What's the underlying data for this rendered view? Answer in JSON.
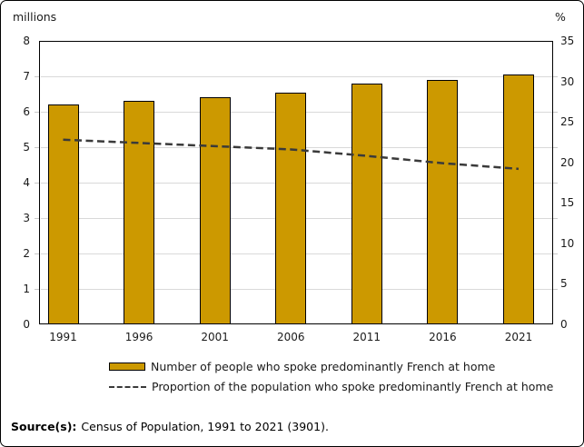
{
  "chart_data": {
    "type": "bar",
    "subtype": "bar-with-line-overlay",
    "title": "",
    "categories": [
      "1991",
      "1996",
      "2001",
      "2006",
      "2011",
      "2016",
      "2021"
    ],
    "series": [
      {
        "name": "Number of people who spoke predominantly French at home",
        "type": "bar",
        "axis": "left",
        "unit": "millions",
        "color": "#CC9900",
        "values": [
          6.2,
          6.3,
          6.4,
          6.55,
          6.8,
          6.9,
          7.05
        ]
      },
      {
        "name": "Proportion of the population who spoke predominantly French at home",
        "type": "line",
        "axis": "right",
        "unit": "%",
        "style": "dashed",
        "color": "#3a3a3a",
        "values": [
          22.8,
          22.4,
          22.0,
          21.6,
          20.8,
          19.9,
          19.2
        ]
      }
    ],
    "left_axis": {
      "label": "millions",
      "min": 0,
      "max": 8,
      "ticks": [
        0,
        1,
        2,
        3,
        4,
        5,
        6,
        7,
        8
      ]
    },
    "right_axis": {
      "label": "%",
      "min": 0,
      "max": 35,
      "ticks": [
        0,
        5,
        10,
        15,
        20,
        25,
        30,
        35
      ]
    },
    "grid": true,
    "legend_position": "bottom"
  },
  "colors": {
    "bar_fill": "#CC9900",
    "bar_border": "#000000",
    "gridline": "#D9D9D9",
    "dashed_line": "#3a3a3a",
    "text": "#1a1a1a"
  },
  "source": {
    "label": "Source(s):",
    "text": "Census of Population, 1991 to 2021 (3901)."
  }
}
